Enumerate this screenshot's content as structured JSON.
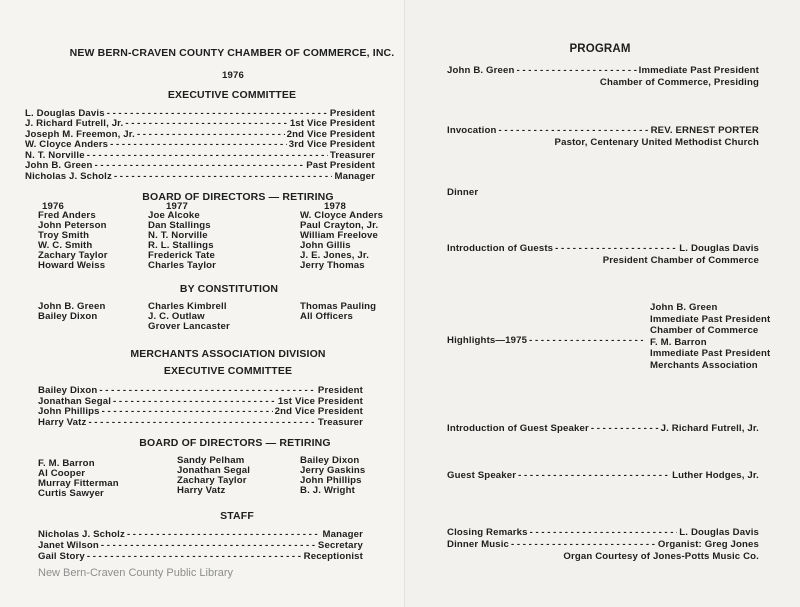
{
  "left": {
    "header": "NEW BERN-CRAVEN COUNTY CHAMBER OF COMMERCE, INC.",
    "year": "1976",
    "exec_title": "EXECUTIVE COMMITTEE",
    "exec": [
      {
        "name": "L. Douglas Davis",
        "role": "President"
      },
      {
        "name": "J. Richard Futrell, Jr.",
        "role": "1st Vice President"
      },
      {
        "name": "Joseph M. Freemon, Jr.",
        "role": "2nd Vice President"
      },
      {
        "name": "W. Cloyce Anders",
        "role": "3rd Vice President"
      },
      {
        "name": "N. T. Norville",
        "role": "Treasurer"
      },
      {
        "name": "John B. Green",
        "role": "Past President"
      },
      {
        "name": "Nicholas J. Scholz",
        "role": "Manager"
      }
    ],
    "board_title": "BOARD OF DIRECTORS — RETIRING",
    "board_columns": [
      {
        "year": "1976",
        "names": [
          "Fred Anders",
          "John Peterson",
          "Troy Smith",
          "W. C. Smith",
          "Zachary Taylor",
          "Howard Weiss"
        ]
      },
      {
        "year": "1977",
        "names": [
          "Joe Alcoke",
          "Dan Stallings",
          "N. T. Norville",
          "R. L. Stallings",
          "Frederick Tate",
          "Charles Taylor"
        ]
      },
      {
        "year": "1978",
        "names": [
          "W. Cloyce Anders",
          "Paul Crayton, Jr.",
          "William Freelove",
          "John Gillis",
          "J. E. Jones, Jr.",
          "Jerry Thomas"
        ]
      }
    ],
    "constitution_title": "BY CONSTITUTION",
    "constitution_columns": [
      [
        "John B. Green",
        "Bailey Dixon"
      ],
      [
        "Charles Kimbrell",
        "J. C. Outlaw",
        "Grover Lancaster"
      ],
      [
        "Thomas Pauling",
        "All Officers"
      ]
    ],
    "merchants_title": "MERCHANTS ASSOCIATION DIVISION",
    "merchants_exec_title": "EXECUTIVE COMMITTEE",
    "merchants_exec": [
      {
        "name": "Bailey Dixon",
        "role": "President"
      },
      {
        "name": "Jonathan Segal",
        "role": "1st Vice President"
      },
      {
        "name": "John Phillips",
        "role": "2nd Vice President"
      },
      {
        "name": "Harry Vatz",
        "role": "Treasurer"
      }
    ],
    "merchants_board_title": "BOARD OF DIRECTORS — RETIRING",
    "merchants_board_columns": [
      [
        "F. M. Barron",
        "Al Cooper",
        "Murray Fitterman",
        "Curtis Sawyer"
      ],
      [
        "Sandy Pelham",
        "Jonathan Segal",
        "Zachary Taylor",
        "Harry Vatz"
      ],
      [
        "Bailey Dixon",
        "Jerry Gaskins",
        "John Phillips",
        "B. J. Wright"
      ]
    ],
    "staff_title": "STAFF",
    "staff": [
      {
        "name": "Nicholas J. Scholz",
        "role": "Manager"
      },
      {
        "name": "Janet Wilson",
        "role": "Secretary"
      },
      {
        "name": "Gail Story",
        "role": "Receptionist"
      }
    ],
    "watermark": "New Bern-Craven County Public Library"
  },
  "right": {
    "title": "PROGRAM",
    "items": [
      {
        "label": "John B. Green",
        "lines": [
          "Immediate Past President",
          "Chamber of Commerce, Presiding"
        ]
      },
      {
        "label": "Invocation",
        "lines": [
          "REV. ERNEST PORTER",
          "Pastor, Centenary United Methodist Church"
        ]
      },
      {
        "label": "Dinner",
        "lines": []
      },
      {
        "label": "Introduction of Guests",
        "lines": [
          "L. Douglas Davis",
          "President Chamber of Commerce"
        ]
      },
      {
        "label": "Highlights—1975",
        "lines": [
          "John B. Green",
          "Immediate Past President",
          "Chamber of Commerce",
          "F. M. Barron",
          "Immediate Past President",
          "Merchants Association"
        ]
      },
      {
        "label": "Introduction of Guest Speaker",
        "lines": [
          "J. Richard Futrell, Jr."
        ]
      },
      {
        "label": "Guest Speaker",
        "lines": [
          "Luther Hodges, Jr."
        ]
      },
      {
        "label": "Closing Remarks",
        "lines": [
          "L. Douglas Davis"
        ]
      },
      {
        "label": "Dinner Music",
        "lines": [
          "Organist:  Greg Jones",
          "Organ Courtesy of Jones-Potts Music Co."
        ]
      }
    ]
  }
}
